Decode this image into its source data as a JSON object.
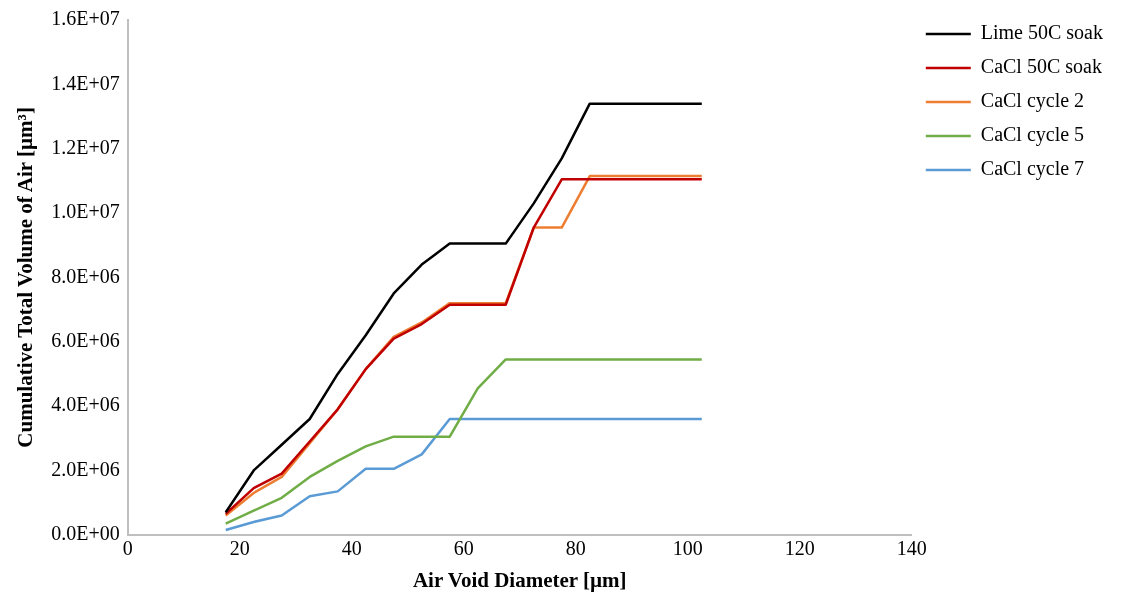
{
  "chart_data": {
    "type": "line",
    "xlabel": "Air Void Diameter [µm]",
    "ylabel": "Cumulative Total Volume of Air [µm³]",
    "x": [
      17.5,
      22.5,
      27.5,
      32.5,
      37.5,
      42.5,
      47.5,
      52.5,
      57.5,
      62.5,
      67.5,
      72.5,
      77.5,
      82.5,
      87.5,
      92.5,
      97.5,
      102.5
    ],
    "series": [
      {
        "name": "Lime 50C soak",
        "color": "#000000",
        "values": [
          700000,
          2000000,
          2800000,
          3600000,
          5000000,
          6200000,
          7500000,
          8400000,
          9050000,
          9050000,
          9050000,
          10300000,
          11700000,
          13400000,
          13400000,
          13400000,
          13400000,
          13400000
        ]
      },
      {
        "name": "CaCl 50C soak",
        "color": "#c00000",
        "values": [
          650000,
          1450000,
          1900000,
          2900000,
          3900000,
          5150000,
          6100000,
          6550000,
          7150000,
          7150000,
          7150000,
          9550000,
          11050000,
          11050000,
          11050000,
          11050000,
          11050000,
          11050000
        ]
      },
      {
        "name": "CaCl cycle 2",
        "color": "#ed7d31",
        "values": [
          600000,
          1300000,
          1800000,
          2850000,
          3900000,
          5150000,
          6150000,
          6600000,
          7200000,
          7200000,
          7200000,
          9550000,
          9550000,
          11150000,
          11150000,
          11150000,
          11150000,
          11150000
        ]
      },
      {
        "name": "CaCl cycle 5",
        "color": "#70ad47",
        "values": [
          350000,
          750000,
          1150000,
          1800000,
          2300000,
          2750000,
          3050000,
          3050000,
          3050000,
          4550000,
          5450000,
          5450000,
          5450000,
          5450000,
          5450000,
          5450000,
          5450000,
          5450000
        ]
      },
      {
        "name": "CaCl cycle 7",
        "color": "#5b9bd5",
        "values": [
          150000,
          400000,
          600000,
          1200000,
          1350000,
          2050000,
          2050000,
          2500000,
          3600000,
          3600000,
          3600000,
          3600000,
          3600000,
          3600000,
          3600000,
          3600000,
          3600000,
          3600000
        ]
      }
    ],
    "xlim": [
      0,
      140
    ],
    "xticks": [
      0,
      20,
      40,
      60,
      80,
      100,
      120,
      140
    ],
    "ylim": [
      0,
      16000000
    ],
    "yticks": [
      {
        "value": 0,
        "label": "0.0E+00"
      },
      {
        "value": 2000000,
        "label": "2.0E+06"
      },
      {
        "value": 4000000,
        "label": "4.0E+06"
      },
      {
        "value": 6000000,
        "label": "6.0E+06"
      },
      {
        "value": 8000000,
        "label": "8.0E+06"
      },
      {
        "value": 10000000,
        "label": "1.0E+07"
      },
      {
        "value": 12000000,
        "label": "1.2E+07"
      },
      {
        "value": 14000000,
        "label": "1.4E+07"
      },
      {
        "value": 16000000,
        "label": "1.6E+07"
      }
    ],
    "grid": false,
    "legend": "top right",
    "marker": "none",
    "line_style": "solid"
  }
}
